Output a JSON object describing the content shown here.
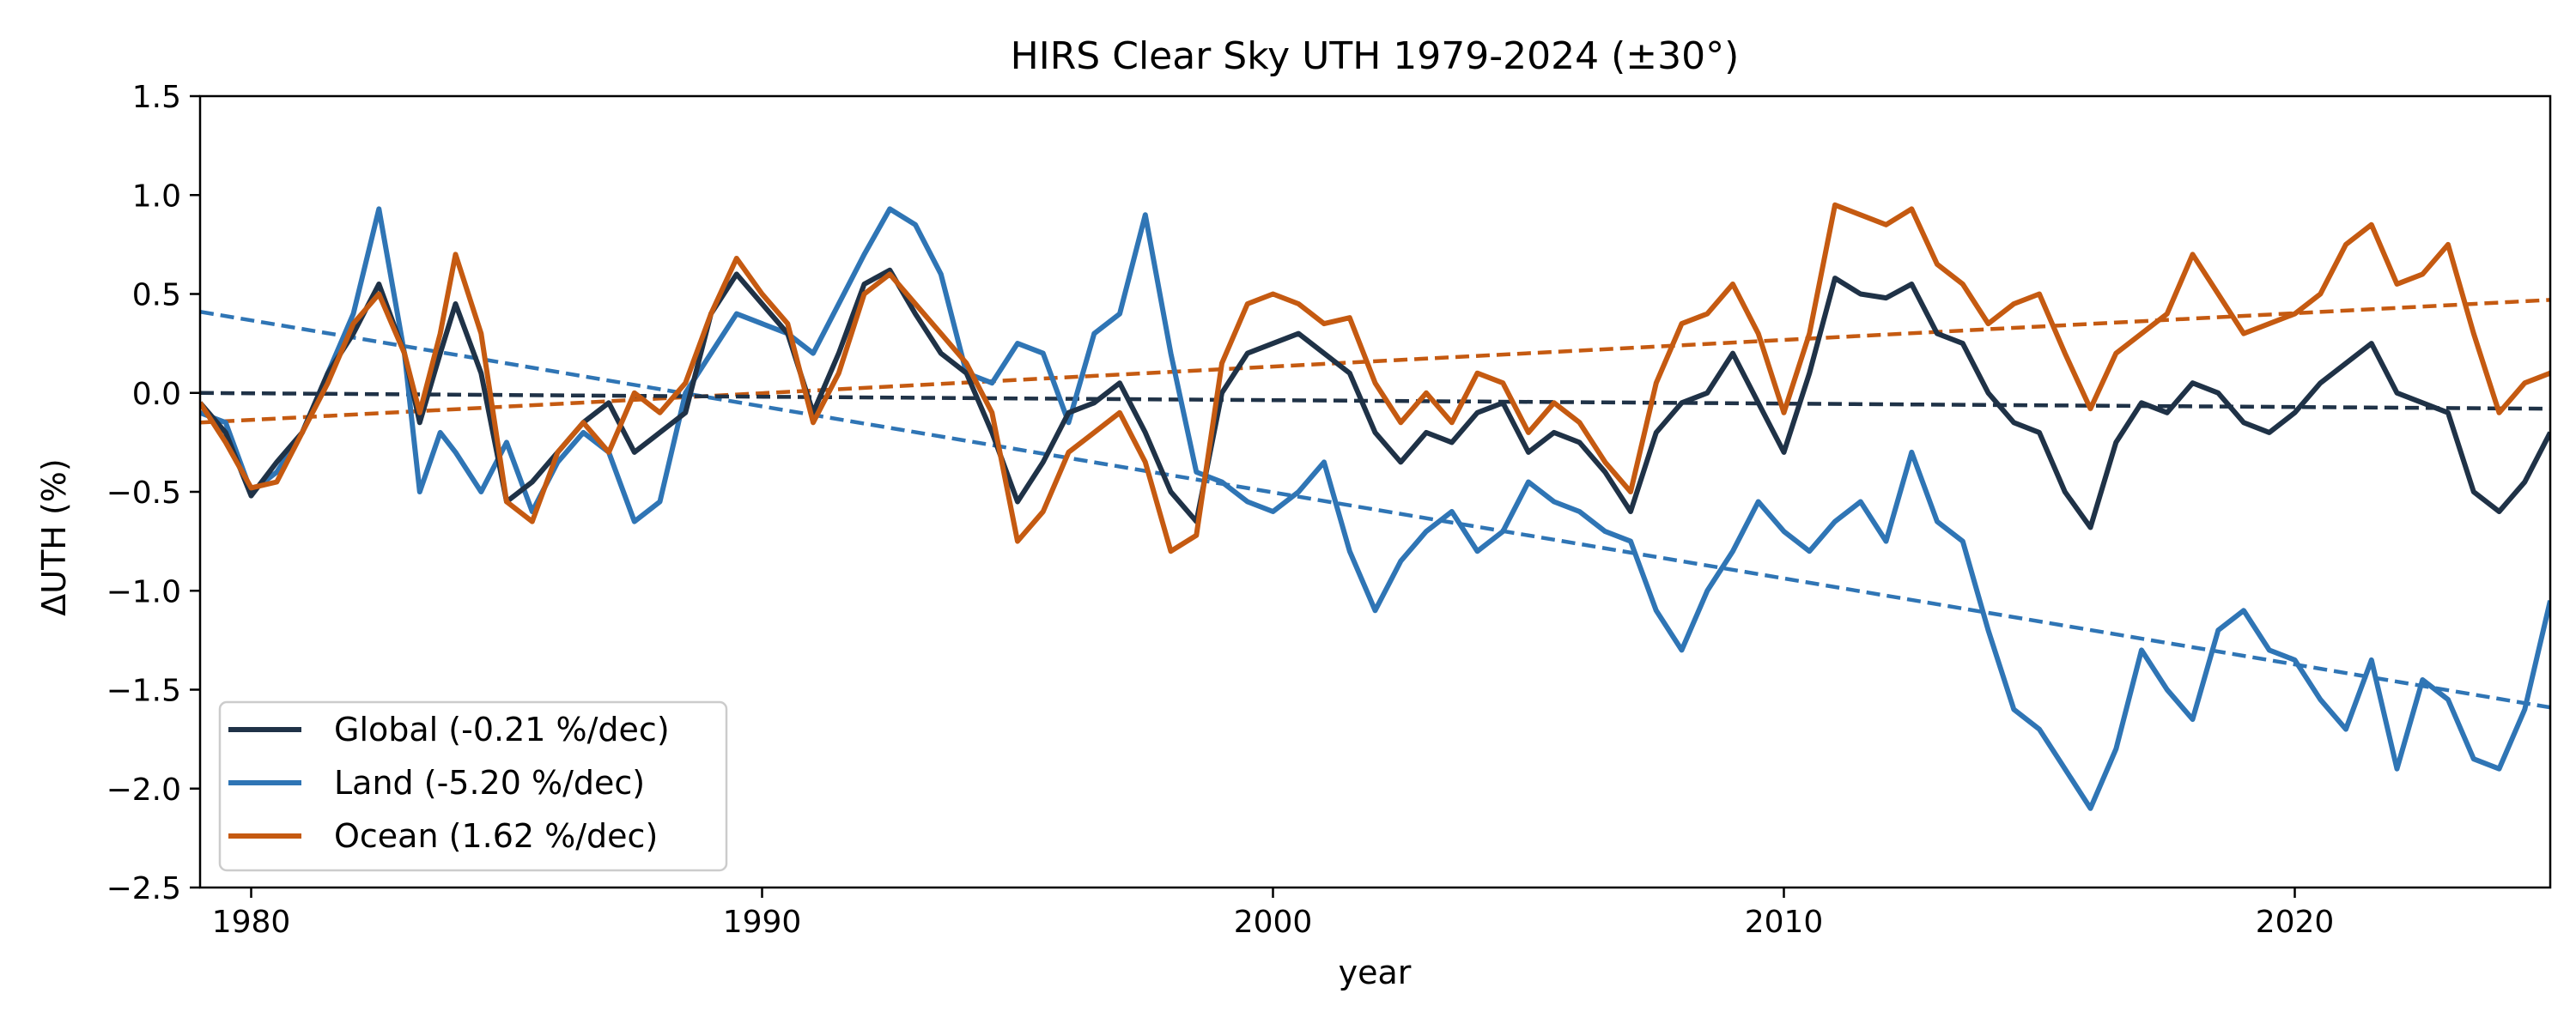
{
  "chart_data": {
    "type": "line",
    "title": "HIRS Clear Sky UTH 1979-2024 (±30°)",
    "xlabel": "year",
    "ylabel": "ΔUTH (%)",
    "xlim": [
      1979,
      2025
    ],
    "ylim": [
      -2.5,
      1.5
    ],
    "x_ticks": [
      1980,
      1990,
      2000,
      2010,
      2020
    ],
    "y_ticks": [
      -2.5,
      -2.0,
      -1.5,
      -1.0,
      -0.5,
      0.0,
      0.5,
      1.0,
      1.5
    ],
    "y_tick_labels": [
      "−2.5",
      "−2.0",
      "−1.5",
      "−1.0",
      "−0.5",
      "0.0",
      "0.5",
      "1.0",
      "1.5"
    ],
    "x_tick_labels": [
      "1980",
      "1990",
      "2000",
      "2010",
      "2020"
    ],
    "legend_position": "lower-left",
    "grid": false,
    "series": [
      {
        "name": "Global (-0.21 %/dec)",
        "color": "#1f3247",
        "style": "solid",
        "points": [
          [
            1979.0,
            -0.05
          ],
          [
            1979.5,
            -0.2
          ],
          [
            1980.0,
            -0.52
          ],
          [
            1980.5,
            -0.35
          ],
          [
            1981.0,
            -0.2
          ],
          [
            1981.5,
            0.1
          ],
          [
            1982.0,
            0.3
          ],
          [
            1982.5,
            0.55
          ],
          [
            1983.0,
            0.2
          ],
          [
            1983.3,
            -0.15
          ],
          [
            1983.7,
            0.2
          ],
          [
            1984.0,
            0.45
          ],
          [
            1984.5,
            0.1
          ],
          [
            1985.0,
            -0.55
          ],
          [
            1985.5,
            -0.45
          ],
          [
            1986.0,
            -0.3
          ],
          [
            1986.5,
            -0.15
          ],
          [
            1987.0,
            -0.05
          ],
          [
            1987.5,
            -0.3
          ],
          [
            1988.0,
            -0.2
          ],
          [
            1988.5,
            -0.1
          ],
          [
            1989.0,
            0.4
          ],
          [
            1989.5,
            0.6
          ],
          [
            1990.0,
            0.45
          ],
          [
            1990.5,
            0.3
          ],
          [
            1991.0,
            -0.1
          ],
          [
            1991.5,
            0.2
          ],
          [
            1992.0,
            0.55
          ],
          [
            1992.5,
            0.62
          ],
          [
            1993.0,
            0.4
          ],
          [
            1993.5,
            0.2
          ],
          [
            1994.0,
            0.1
          ],
          [
            1994.5,
            -0.2
          ],
          [
            1995.0,
            -0.55
          ],
          [
            1995.5,
            -0.35
          ],
          [
            1996.0,
            -0.1
          ],
          [
            1996.5,
            -0.05
          ],
          [
            1997.0,
            0.05
          ],
          [
            1997.5,
            -0.2
          ],
          [
            1998.0,
            -0.5
          ],
          [
            1998.5,
            -0.65
          ],
          [
            1999.0,
            0.0
          ],
          [
            1999.5,
            0.2
          ],
          [
            2000.0,
            0.25
          ],
          [
            2000.5,
            0.3
          ],
          [
            2001.0,
            0.2
          ],
          [
            2001.5,
            0.1
          ],
          [
            2002.0,
            -0.2
          ],
          [
            2002.5,
            -0.35
          ],
          [
            2003.0,
            -0.2
          ],
          [
            2003.5,
            -0.25
          ],
          [
            2004.0,
            -0.1
          ],
          [
            2004.5,
            -0.05
          ],
          [
            2005.0,
            -0.3
          ],
          [
            2005.5,
            -0.2
          ],
          [
            2006.0,
            -0.25
          ],
          [
            2006.5,
            -0.4
          ],
          [
            2007.0,
            -0.6
          ],
          [
            2007.5,
            -0.2
          ],
          [
            2008.0,
            -0.05
          ],
          [
            2008.5,
            0.0
          ],
          [
            2009.0,
            0.2
          ],
          [
            2009.5,
            -0.05
          ],
          [
            2010.0,
            -0.3
          ],
          [
            2010.5,
            0.1
          ],
          [
            2011.0,
            0.58
          ],
          [
            2011.5,
            0.5
          ],
          [
            2012.0,
            0.48
          ],
          [
            2012.5,
            0.55
          ],
          [
            2013.0,
            0.3
          ],
          [
            2013.5,
            0.25
          ],
          [
            2014.0,
            0.0
          ],
          [
            2014.5,
            -0.15
          ],
          [
            2015.0,
            -0.2
          ],
          [
            2015.5,
            -0.5
          ],
          [
            2016.0,
            -0.68
          ],
          [
            2016.5,
            -0.25
          ],
          [
            2017.0,
            -0.05
          ],
          [
            2017.5,
            -0.1
          ],
          [
            2018.0,
            0.05
          ],
          [
            2018.5,
            0.0
          ],
          [
            2019.0,
            -0.15
          ],
          [
            2019.5,
            -0.2
          ],
          [
            2020.0,
            -0.1
          ],
          [
            2020.5,
            0.05
          ],
          [
            2021.0,
            0.15
          ],
          [
            2021.5,
            0.25
          ],
          [
            2022.0,
            0.0
          ],
          [
            2022.5,
            -0.05
          ],
          [
            2023.0,
            -0.1
          ],
          [
            2023.5,
            -0.5
          ],
          [
            2024.0,
            -0.6
          ],
          [
            2024.5,
            -0.45
          ],
          [
            2025.0,
            -0.2
          ]
        ]
      },
      {
        "name": "Land (-5.20 %/dec)",
        "color": "#2f75b5",
        "style": "solid",
        "points": [
          [
            1979.0,
            -0.1
          ],
          [
            1979.5,
            -0.15
          ],
          [
            1980.0,
            -0.5
          ],
          [
            1980.5,
            -0.4
          ],
          [
            1981.0,
            -0.2
          ],
          [
            1981.5,
            0.1
          ],
          [
            1982.0,
            0.4
          ],
          [
            1982.5,
            0.93
          ],
          [
            1983.0,
            0.2
          ],
          [
            1983.3,
            -0.5
          ],
          [
            1983.7,
            -0.2
          ],
          [
            1984.0,
            -0.3
          ],
          [
            1984.5,
            -0.5
          ],
          [
            1985.0,
            -0.25
          ],
          [
            1985.5,
            -0.6
          ],
          [
            1986.0,
            -0.35
          ],
          [
            1986.5,
            -0.2
          ],
          [
            1987.0,
            -0.3
          ],
          [
            1987.5,
            -0.65
          ],
          [
            1988.0,
            -0.55
          ],
          [
            1988.5,
            0.0
          ],
          [
            1989.0,
            0.2
          ],
          [
            1989.5,
            0.4
          ],
          [
            1990.0,
            0.35
          ],
          [
            1990.5,
            0.3
          ],
          [
            1991.0,
            0.2
          ],
          [
            1991.5,
            0.45
          ],
          [
            1992.0,
            0.7
          ],
          [
            1992.5,
            0.93
          ],
          [
            1993.0,
            0.85
          ],
          [
            1993.5,
            0.6
          ],
          [
            1994.0,
            0.1
          ],
          [
            1994.5,
            0.05
          ],
          [
            1995.0,
            0.25
          ],
          [
            1995.5,
            0.2
          ],
          [
            1996.0,
            -0.15
          ],
          [
            1996.5,
            0.3
          ],
          [
            1997.0,
            0.4
          ],
          [
            1997.5,
            0.9
          ],
          [
            1998.0,
            0.2
          ],
          [
            1998.5,
            -0.4
          ],
          [
            1999.0,
            -0.45
          ],
          [
            1999.5,
            -0.55
          ],
          [
            2000.0,
            -0.6
          ],
          [
            2000.5,
            -0.5
          ],
          [
            2001.0,
            -0.35
          ],
          [
            2001.5,
            -0.8
          ],
          [
            2002.0,
            -1.1
          ],
          [
            2002.5,
            -0.85
          ],
          [
            2003.0,
            -0.7
          ],
          [
            2003.5,
            -0.6
          ],
          [
            2004.0,
            -0.8
          ],
          [
            2004.5,
            -0.7
          ],
          [
            2005.0,
            -0.45
          ],
          [
            2005.5,
            -0.55
          ],
          [
            2006.0,
            -0.6
          ],
          [
            2006.5,
            -0.7
          ],
          [
            2007.0,
            -0.75
          ],
          [
            2007.5,
            -1.1
          ],
          [
            2008.0,
            -1.3
          ],
          [
            2008.5,
            -1.0
          ],
          [
            2009.0,
            -0.8
          ],
          [
            2009.5,
            -0.55
          ],
          [
            2010.0,
            -0.7
          ],
          [
            2010.5,
            -0.8
          ],
          [
            2011.0,
            -0.65
          ],
          [
            2011.5,
            -0.55
          ],
          [
            2012.0,
            -0.75
          ],
          [
            2012.5,
            -0.3
          ],
          [
            2013.0,
            -0.65
          ],
          [
            2013.5,
            -0.75
          ],
          [
            2014.0,
            -1.2
          ],
          [
            2014.5,
            -1.6
          ],
          [
            2015.0,
            -1.7
          ],
          [
            2015.5,
            -1.9
          ],
          [
            2016.0,
            -2.1
          ],
          [
            2016.5,
            -1.8
          ],
          [
            2017.0,
            -1.3
          ],
          [
            2017.5,
            -1.5
          ],
          [
            2018.0,
            -1.65
          ],
          [
            2018.5,
            -1.2
          ],
          [
            2019.0,
            -1.1
          ],
          [
            2019.5,
            -1.3
          ],
          [
            2020.0,
            -1.35
          ],
          [
            2020.5,
            -1.55
          ],
          [
            2021.0,
            -1.7
          ],
          [
            2021.5,
            -1.35
          ],
          [
            2022.0,
            -1.9
          ],
          [
            2022.5,
            -1.45
          ],
          [
            2023.0,
            -1.55
          ],
          [
            2023.5,
            -1.85
          ],
          [
            2024.0,
            -1.9
          ],
          [
            2024.5,
            -1.6
          ],
          [
            2025.0,
            -1.05
          ]
        ]
      },
      {
        "name": "Ocean (1.62 %/dec)",
        "color": "#c55a11",
        "style": "solid",
        "points": [
          [
            1979.0,
            -0.05
          ],
          [
            1979.5,
            -0.25
          ],
          [
            1980.0,
            -0.48
          ],
          [
            1980.5,
            -0.45
          ],
          [
            1981.0,
            -0.2
          ],
          [
            1981.5,
            0.05
          ],
          [
            1982.0,
            0.35
          ],
          [
            1982.5,
            0.5
          ],
          [
            1983.0,
            0.2
          ],
          [
            1983.3,
            -0.1
          ],
          [
            1983.7,
            0.3
          ],
          [
            1984.0,
            0.7
          ],
          [
            1984.5,
            0.3
          ],
          [
            1985.0,
            -0.55
          ],
          [
            1985.5,
            -0.65
          ],
          [
            1986.0,
            -0.3
          ],
          [
            1986.5,
            -0.15
          ],
          [
            1987.0,
            -0.3
          ],
          [
            1987.5,
            0.0
          ],
          [
            1988.0,
            -0.1
          ],
          [
            1988.5,
            0.05
          ],
          [
            1989.0,
            0.4
          ],
          [
            1989.5,
            0.68
          ],
          [
            1990.0,
            0.5
          ],
          [
            1990.5,
            0.35
          ],
          [
            1991.0,
            -0.15
          ],
          [
            1991.5,
            0.1
          ],
          [
            1992.0,
            0.5
          ],
          [
            1992.5,
            0.6
          ],
          [
            1993.0,
            0.45
          ],
          [
            1993.5,
            0.3
          ],
          [
            1994.0,
            0.15
          ],
          [
            1994.5,
            -0.1
          ],
          [
            1995.0,
            -0.75
          ],
          [
            1995.5,
            -0.6
          ],
          [
            1996.0,
            -0.3
          ],
          [
            1996.5,
            -0.2
          ],
          [
            1997.0,
            -0.1
          ],
          [
            1997.5,
            -0.35
          ],
          [
            1998.0,
            -0.8
          ],
          [
            1998.5,
            -0.72
          ],
          [
            1999.0,
            0.15
          ],
          [
            1999.5,
            0.45
          ],
          [
            2000.0,
            0.5
          ],
          [
            2000.5,
            0.45
          ],
          [
            2001.0,
            0.35
          ],
          [
            2001.5,
            0.38
          ],
          [
            2002.0,
            0.05
          ],
          [
            2002.5,
            -0.15
          ],
          [
            2003.0,
            0.0
          ],
          [
            2003.5,
            -0.15
          ],
          [
            2004.0,
            0.1
          ],
          [
            2004.5,
            0.05
          ],
          [
            2005.0,
            -0.2
          ],
          [
            2005.5,
            -0.05
          ],
          [
            2006.0,
            -0.15
          ],
          [
            2006.5,
            -0.35
          ],
          [
            2007.0,
            -0.5
          ],
          [
            2007.5,
            0.05
          ],
          [
            2008.0,
            0.35
          ],
          [
            2008.5,
            0.4
          ],
          [
            2009.0,
            0.55
          ],
          [
            2009.5,
            0.3
          ],
          [
            2010.0,
            -0.1
          ],
          [
            2010.5,
            0.3
          ],
          [
            2011.0,
            0.95
          ],
          [
            2011.5,
            0.9
          ],
          [
            2012.0,
            0.85
          ],
          [
            2012.5,
            0.93
          ],
          [
            2013.0,
            0.65
          ],
          [
            2013.5,
            0.55
          ],
          [
            2014.0,
            0.35
          ],
          [
            2014.5,
            0.45
          ],
          [
            2015.0,
            0.5
          ],
          [
            2015.5,
            0.2
          ],
          [
            2016.0,
            -0.08
          ],
          [
            2016.5,
            0.2
          ],
          [
            2017.0,
            0.3
          ],
          [
            2017.5,
            0.4
          ],
          [
            2018.0,
            0.7
          ],
          [
            2018.5,
            0.5
          ],
          [
            2019.0,
            0.3
          ],
          [
            2019.5,
            0.35
          ],
          [
            2020.0,
            0.4
          ],
          [
            2020.5,
            0.5
          ],
          [
            2021.0,
            0.75
          ],
          [
            2021.5,
            0.85
          ],
          [
            2022.0,
            0.55
          ],
          [
            2022.5,
            0.6
          ],
          [
            2023.0,
            0.75
          ],
          [
            2023.5,
            0.3
          ],
          [
            2024.0,
            -0.1
          ],
          [
            2024.5,
            0.05
          ],
          [
            2025.0,
            0.1
          ]
        ]
      },
      {
        "name": "",
        "color": "#1f3247",
        "style": "dashed",
        "points": [
          [
            1979.0,
            0.0
          ],
          [
            2025.0,
            -0.08
          ]
        ]
      },
      {
        "name": "",
        "color": "#2f75b5",
        "style": "dashed",
        "points": [
          [
            1979.0,
            0.41
          ],
          [
            2025.0,
            -1.59
          ]
        ]
      },
      {
        "name": "",
        "color": "#c55a11",
        "style": "dashed",
        "points": [
          [
            1979.0,
            -0.15
          ],
          [
            2025.0,
            0.47
          ]
        ]
      }
    ]
  }
}
